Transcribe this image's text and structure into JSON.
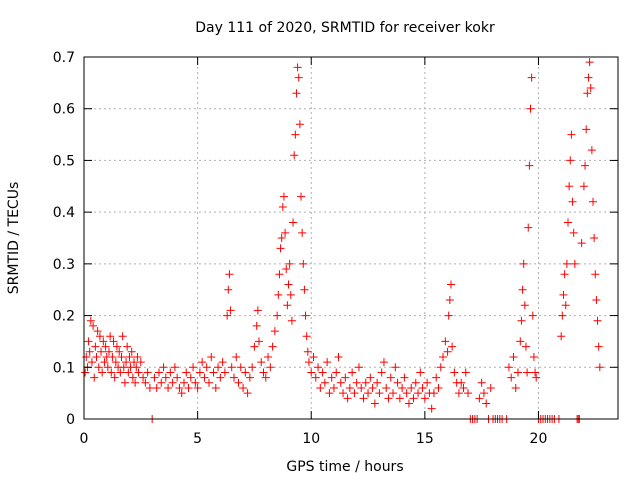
{
  "chart_data": {
    "type": "scatter",
    "title": "Day 111 of 2020, SRMTID for receiver kokr",
    "xlabel": "GPS time / hours",
    "ylabel": "SRMTID / TECUs",
    "xlim": [
      0,
      23.5
    ],
    "ylim": [
      0,
      0.7
    ],
    "xticks": [
      0,
      5,
      10,
      15,
      20
    ],
    "xtick_labels": [
      "0",
      "5",
      "10",
      "15",
      "20"
    ],
    "yticks": [
      0,
      0.1,
      0.2,
      0.3,
      0.4,
      0.5,
      0.6,
      0.7
    ],
    "ytick_labels": [
      "0",
      "0.1",
      "0.2",
      "0.3",
      "0.4",
      "0.5",
      "0.6",
      "0.7"
    ],
    "grid": true,
    "marker": "+",
    "color": "#ff0000",
    "series": [
      {
        "name": "SRMTID",
        "points": [
          [
            0.05,
            0.09
          ],
          [
            0.1,
            0.12
          ],
          [
            0.15,
            0.1
          ],
          [
            0.2,
            0.15
          ],
          [
            0.25,
            0.13
          ],
          [
            0.3,
            0.19
          ],
          [
            0.35,
            0.11
          ],
          [
            0.4,
            0.18
          ],
          [
            0.45,
            0.08
          ],
          [
            0.5,
            0.14
          ],
          [
            0.55,
            0.12
          ],
          [
            0.6,
            0.17
          ],
          [
            0.65,
            0.1
          ],
          [
            0.7,
            0.16
          ],
          [
            0.75,
            0.13
          ],
          [
            0.8,
            0.09
          ],
          [
            0.85,
            0.15
          ],
          [
            0.9,
            0.11
          ],
          [
            0.95,
            0.14
          ],
          [
            1.0,
            0.12
          ],
          [
            1.05,
            0.1
          ],
          [
            1.1,
            0.13
          ],
          [
            1.15,
            0.16
          ],
          [
            1.2,
            0.09
          ],
          [
            1.25,
            0.12
          ],
          [
            1.3,
            0.15
          ],
          [
            1.35,
            0.08
          ],
          [
            1.4,
            0.11
          ],
          [
            1.45,
            0.14
          ],
          [
            1.5,
            0.1
          ],
          [
            1.55,
            0.13
          ],
          [
            1.6,
            0.09
          ],
          [
            1.65,
            0.12
          ],
          [
            1.7,
            0.16
          ],
          [
            1.75,
            0.1
          ],
          [
            1.8,
            0.07
          ],
          [
            1.85,
            0.11
          ],
          [
            1.9,
            0.14
          ],
          [
            1.95,
            0.09
          ],
          [
            2.0,
            0.12
          ],
          [
            2.05,
            0.1
          ],
          [
            2.1,
            0.13
          ],
          [
            2.15,
            0.08
          ],
          [
            2.2,
            0.11
          ],
          [
            2.25,
            0.07
          ],
          [
            2.3,
            0.1
          ],
          [
            2.35,
            0.12
          ],
          [
            2.4,
            0.09
          ],
          [
            2.5,
            0.11
          ],
          [
            2.6,
            0.08
          ],
          [
            2.7,
            0.07
          ],
          [
            2.8,
            0.09
          ],
          [
            2.9,
            0.06
          ],
          [
            3.0,
            0.0
          ],
          [
            3.1,
            0.08
          ],
          [
            3.2,
            0.06
          ],
          [
            3.3,
            0.09
          ],
          [
            3.4,
            0.07
          ],
          [
            3.5,
            0.1
          ],
          [
            3.6,
            0.08
          ],
          [
            3.7,
            0.06
          ],
          [
            3.8,
            0.09
          ],
          [
            3.9,
            0.07
          ],
          [
            4.0,
            0.1
          ],
          [
            4.1,
            0.08
          ],
          [
            4.2,
            0.06
          ],
          [
            4.3,
            0.05
          ],
          [
            4.4,
            0.07
          ],
          [
            4.5,
            0.09
          ],
          [
            4.6,
            0.06
          ],
          [
            4.7,
            0.08
          ],
          [
            4.8,
            0.1
          ],
          [
            4.9,
            0.07
          ],
          [
            5.0,
            0.06
          ],
          [
            5.1,
            0.09
          ],
          [
            5.2,
            0.11
          ],
          [
            5.3,
            0.08
          ],
          [
            5.4,
            0.1
          ],
          [
            5.5,
            0.07
          ],
          [
            5.6,
            0.12
          ],
          [
            5.7,
            0.09
          ],
          [
            5.8,
            0.06
          ],
          [
            5.9,
            0.1
          ],
          [
            6.0,
            0.08
          ],
          [
            6.1,
            0.11
          ],
          [
            6.2,
            0.09
          ],
          [
            6.3,
            0.2
          ],
          [
            6.35,
            0.25
          ],
          [
            6.4,
            0.28
          ],
          [
            6.45,
            0.21
          ],
          [
            6.5,
            0.1
          ],
          [
            6.6,
            0.08
          ],
          [
            6.7,
            0.12
          ],
          [
            6.8,
            0.07
          ],
          [
            6.9,
            0.1
          ],
          [
            7.0,
            0.06
          ],
          [
            7.1,
            0.09
          ],
          [
            7.2,
            0.05
          ],
          [
            7.3,
            0.08
          ],
          [
            7.4,
            0.1
          ],
          [
            7.5,
            0.14
          ],
          [
            7.6,
            0.18
          ],
          [
            7.65,
            0.21
          ],
          [
            7.7,
            0.15
          ],
          [
            7.8,
            0.11
          ],
          [
            7.9,
            0.09
          ],
          [
            8.0,
            0.08
          ],
          [
            8.1,
            0.12
          ],
          [
            8.2,
            0.1
          ],
          [
            8.3,
            0.14
          ],
          [
            8.4,
            0.17
          ],
          [
            8.5,
            0.2
          ],
          [
            8.55,
            0.24
          ],
          [
            8.6,
            0.28
          ],
          [
            8.65,
            0.33
          ],
          [
            8.7,
            0.35
          ],
          [
            8.75,
            0.41
          ],
          [
            8.8,
            0.43
          ],
          [
            8.85,
            0.36
          ],
          [
            8.9,
            0.29
          ],
          [
            8.95,
            0.22
          ],
          [
            9.0,
            0.26
          ],
          [
            9.05,
            0.3
          ],
          [
            9.1,
            0.24
          ],
          [
            9.15,
            0.19
          ],
          [
            9.2,
            0.38
          ],
          [
            9.25,
            0.51
          ],
          [
            9.3,
            0.55
          ],
          [
            9.35,
            0.63
          ],
          [
            9.4,
            0.68
          ],
          [
            9.45,
            0.66
          ],
          [
            9.5,
            0.57
          ],
          [
            9.55,
            0.43
          ],
          [
            9.6,
            0.36
          ],
          [
            9.65,
            0.3
          ],
          [
            9.7,
            0.25
          ],
          [
            9.75,
            0.2
          ],
          [
            9.8,
            0.16
          ],
          [
            9.85,
            0.13
          ],
          [
            9.9,
            0.11
          ],
          [
            10.0,
            0.09
          ],
          [
            10.1,
            0.12
          ],
          [
            10.2,
            0.08
          ],
          [
            10.3,
            0.1
          ],
          [
            10.4,
            0.06
          ],
          [
            10.5,
            0.09
          ],
          [
            10.6,
            0.07
          ],
          [
            10.7,
            0.11
          ],
          [
            10.8,
            0.05
          ],
          [
            10.9,
            0.08
          ],
          [
            11.0,
            0.06
          ],
          [
            11.1,
            0.09
          ],
          [
            11.2,
            0.12
          ],
          [
            11.3,
            0.07
          ],
          [
            11.4,
            0.05
          ],
          [
            11.5,
            0.08
          ],
          [
            11.6,
            0.04
          ],
          [
            11.7,
            0.06
          ],
          [
            11.8,
            0.09
          ],
          [
            11.9,
            0.05
          ],
          [
            12.0,
            0.07
          ],
          [
            12.1,
            0.1
          ],
          [
            12.2,
            0.06
          ],
          [
            12.3,
            0.04
          ],
          [
            12.4,
            0.07
          ],
          [
            12.5,
            0.05
          ],
          [
            12.6,
            0.08
          ],
          [
            12.7,
            0.06
          ],
          [
            12.8,
            0.03
          ],
          [
            12.9,
            0.07
          ],
          [
            13.0,
            0.05
          ],
          [
            13.1,
            0.09
          ],
          [
            13.2,
            0.11
          ],
          [
            13.3,
            0.06
          ],
          [
            13.4,
            0.04
          ],
          [
            13.5,
            0.08
          ],
          [
            13.6,
            0.05
          ],
          [
            13.7,
            0.1
          ],
          [
            13.8,
            0.07
          ],
          [
            13.9,
            0.04
          ],
          [
            14.0,
            0.06
          ],
          [
            14.1,
            0.08
          ],
          [
            14.2,
            0.05
          ],
          [
            14.3,
            0.03
          ],
          [
            14.4,
            0.06
          ],
          [
            14.5,
            0.04
          ],
          [
            14.6,
            0.07
          ],
          [
            14.7,
            0.05
          ],
          [
            14.8,
            0.09
          ],
          [
            14.9,
            0.06
          ],
          [
            15.0,
            0.04
          ],
          [
            15.1,
            0.07
          ],
          [
            15.2,
            0.05
          ],
          [
            15.3,
            0.02
          ],
          [
            15.4,
            0.05
          ],
          [
            15.5,
            0.08
          ],
          [
            15.6,
            0.06
          ],
          [
            15.7,
            0.1
          ],
          [
            15.8,
            0.12
          ],
          [
            15.9,
            0.15
          ],
          [
            16.0,
            0.13
          ],
          [
            16.05,
            0.2
          ],
          [
            16.1,
            0.23
          ],
          [
            16.15,
            0.26
          ],
          [
            16.2,
            0.14
          ],
          [
            16.3,
            0.09
          ],
          [
            16.4,
            0.07
          ],
          [
            16.5,
            0.05
          ],
          [
            16.6,
            0.07
          ],
          [
            16.7,
            0.06
          ],
          [
            16.8,
            0.09
          ],
          [
            16.9,
            0.05
          ],
          [
            17.0,
            0.0
          ],
          [
            17.1,
            0.0
          ],
          [
            17.2,
            0.0
          ],
          [
            17.3,
            0.0
          ],
          [
            17.4,
            0.04
          ],
          [
            17.5,
            0.07
          ],
          [
            17.6,
            0.05
          ],
          [
            17.7,
            0.03
          ],
          [
            17.8,
            0.0
          ],
          [
            17.9,
            0.06
          ],
          [
            18.0,
            0.0
          ],
          [
            18.1,
            0.0
          ],
          [
            18.2,
            0.0
          ],
          [
            18.3,
            0.0
          ],
          [
            18.4,
            0.0
          ],
          [
            18.6,
            0.0
          ],
          [
            18.7,
            0.1
          ],
          [
            18.8,
            0.08
          ],
          [
            18.9,
            0.12
          ],
          [
            19.0,
            0.06
          ],
          [
            19.1,
            0.09
          ],
          [
            19.2,
            0.15
          ],
          [
            19.25,
            0.19
          ],
          [
            19.3,
            0.25
          ],
          [
            19.35,
            0.3
          ],
          [
            19.4,
            0.22
          ],
          [
            19.45,
            0.14
          ],
          [
            19.5,
            0.09
          ],
          [
            19.55,
            0.37
          ],
          [
            19.6,
            0.49
          ],
          [
            19.65,
            0.6
          ],
          [
            19.7,
            0.66
          ],
          [
            19.75,
            0.2
          ],
          [
            19.8,
            0.12
          ],
          [
            19.85,
            0.09
          ],
          [
            19.9,
            0.08
          ],
          [
            20.0,
            0.0
          ],
          [
            20.1,
            0.0
          ],
          [
            20.2,
            0.0
          ],
          [
            20.3,
            0.0
          ],
          [
            20.4,
            0.0
          ],
          [
            20.5,
            0.0
          ],
          [
            20.6,
            0.0
          ],
          [
            20.7,
            0.0
          ],
          [
            20.9,
            0.0
          ],
          [
            21.0,
            0.16
          ],
          [
            21.05,
            0.2
          ],
          [
            21.1,
            0.24
          ],
          [
            21.15,
            0.28
          ],
          [
            21.2,
            0.22
          ],
          [
            21.25,
            0.3
          ],
          [
            21.3,
            0.38
          ],
          [
            21.35,
            0.45
          ],
          [
            21.4,
            0.5
          ],
          [
            21.45,
            0.55
          ],
          [
            21.5,
            0.42
          ],
          [
            21.55,
            0.36
          ],
          [
            21.6,
            0.3
          ],
          [
            21.7,
            0.0
          ],
          [
            21.75,
            0.0
          ],
          [
            21.8,
            0.0
          ],
          [
            21.9,
            0.34
          ],
          [
            22.0,
            0.45
          ],
          [
            22.05,
            0.49
          ],
          [
            22.1,
            0.56
          ],
          [
            22.15,
            0.63
          ],
          [
            22.2,
            0.66
          ],
          [
            22.25,
            0.69
          ],
          [
            22.3,
            0.64
          ],
          [
            22.35,
            0.52
          ],
          [
            22.4,
            0.42
          ],
          [
            22.45,
            0.35
          ],
          [
            22.5,
            0.28
          ],
          [
            22.55,
            0.23
          ],
          [
            22.6,
            0.19
          ],
          [
            22.65,
            0.14
          ],
          [
            22.7,
            0.1
          ]
        ]
      }
    ]
  }
}
